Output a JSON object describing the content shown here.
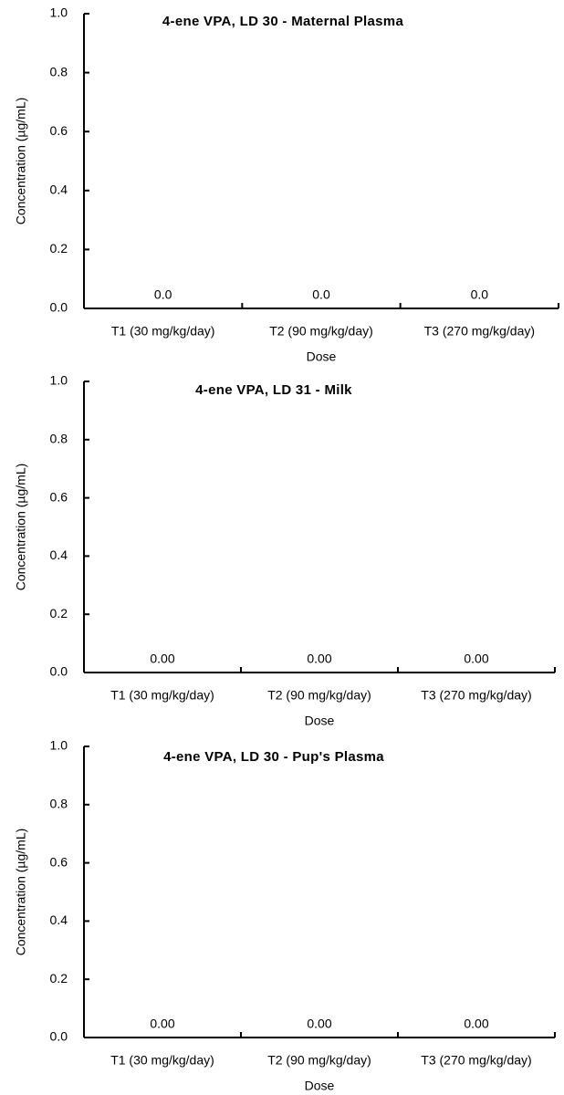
{
  "chart_data": [
    {
      "type": "bar",
      "title": "4-ene VPA, LD 30 - Maternal Plasma",
      "xlabel": "Dose",
      "ylabel": "Concentration (µg/mL)",
      "categories": [
        "T1 (30 mg/kg/day)",
        "T2 (90 mg/kg/day)",
        "T3 (270 mg/kg/day)"
      ],
      "values": [
        0,
        0,
        0
      ],
      "value_labels": [
        "0.0",
        "0.0",
        "0.0"
      ],
      "ylim": [
        0,
        1.0
      ],
      "yticks": [
        "0.0",
        "0.2",
        "0.4",
        "0.6",
        "0.8",
        "1.0"
      ],
      "grid": false
    },
    {
      "type": "bar",
      "title": "4-ene VPA, LD 31 - Milk",
      "xlabel": "Dose",
      "ylabel": "Concentration (µg/mL)",
      "categories": [
        "T1 (30 mg/kg/day)",
        "T2 (90 mg/kg/day)",
        "T3 (270 mg/kg/day)"
      ],
      "values": [
        0,
        0,
        0
      ],
      "value_labels": [
        "0.00",
        "0.00",
        "0.00"
      ],
      "ylim": [
        0,
        1.0
      ],
      "yticks": [
        "0.0",
        "0.2",
        "0.4",
        "0.6",
        "0.8",
        "1.0"
      ],
      "grid": false
    },
    {
      "type": "bar",
      "title": "4-ene VPA, LD 30 - Pup's Plasma",
      "xlabel": "Dose",
      "ylabel": "Concentration (µg/mL)",
      "categories": [
        "T1 (30 mg/kg/day)",
        "T2 (90 mg/kg/day)",
        "T3 (270 mg/kg/day)"
      ],
      "values": [
        0,
        0,
        0
      ],
      "value_labels": [
        "0.00",
        "0.00",
        "0.00"
      ],
      "ylim": [
        0,
        1.0
      ],
      "yticks": [
        "0.0",
        "0.2",
        "0.4",
        "0.6",
        "0.8",
        "1.0"
      ],
      "grid": false
    }
  ]
}
